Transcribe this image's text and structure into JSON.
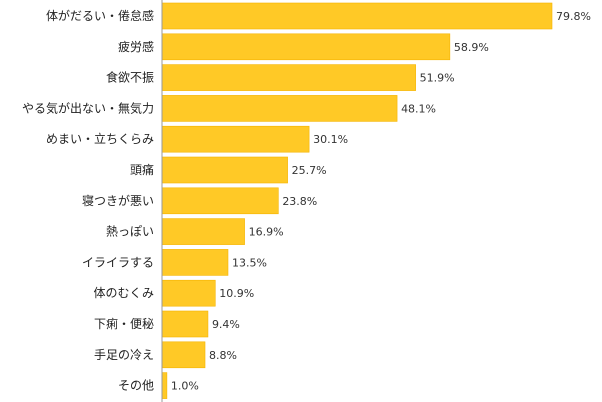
{
  "chart_data": {
    "type": "bar",
    "orientation": "horizontal",
    "title": "",
    "xlabel": "",
    "ylabel": "",
    "value_suffix": "%",
    "xlim": [
      0,
      100
    ],
    "grid": false,
    "legend": "none",
    "bar_color": "#FFC926",
    "bar_edge_color": "#F5B400",
    "categories": [
      "体がだるい・倦怠感",
      "疲労感",
      "食欲不振",
      "やる気が出ない・無気力",
      "めまい・立ちくらみ",
      "頭痛",
      "寝つきが悪い",
      "熱っぽい",
      "イライラする",
      "体のむくみ",
      "下痢・便秘",
      "手足の冷え",
      "その他"
    ],
    "values": [
      79.8,
      58.9,
      51.9,
      48.1,
      30.1,
      25.7,
      23.8,
      16.9,
      13.5,
      10.9,
      9.4,
      8.8,
      1.0
    ],
    "value_labels": [
      "79.8%",
      "58.9%",
      "51.9%",
      "48.1%",
      "30.1%",
      "25.7%",
      "23.8%",
      "16.9%",
      "13.5%",
      "10.9%",
      "9.4%",
      "8.8%",
      "1.0%"
    ]
  }
}
